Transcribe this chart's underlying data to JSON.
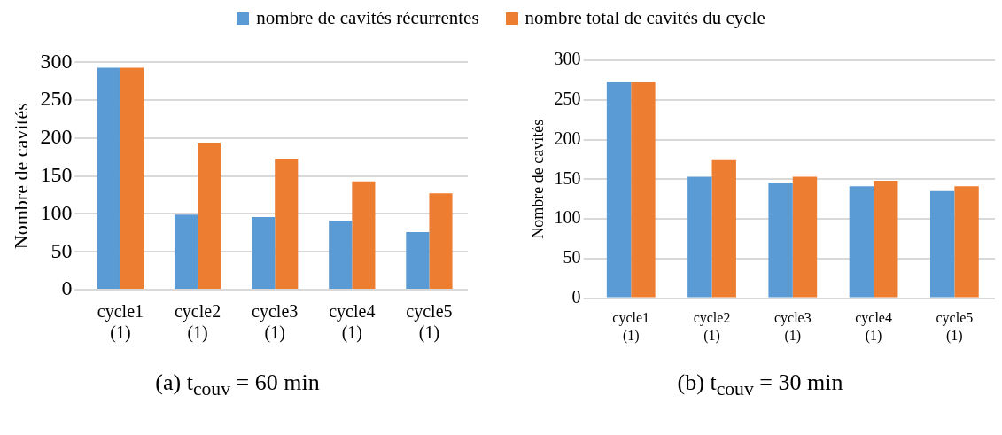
{
  "chart_data": [
    {
      "type": "bar",
      "title": "(a)  t$_{couv}$ = 60 min",
      "ylabel": "Nombre de cavités",
      "categories": [
        "cycle1 (1)",
        "cycle2 (1)",
        "cycle3 (1)",
        "cycle4 (1)",
        "cycle5 (1)"
      ],
      "series": [
        {
          "name": "nombre de cavités récurrentes",
          "color": "#5b9bd5",
          "values": [
            293,
            99,
            96,
            91,
            76
          ]
        },
        {
          "name": "nombre total de cavités du cycle",
          "color": "#ed7d31",
          "values": [
            293,
            194,
            173,
            143,
            127
          ]
        }
      ],
      "ylim": [
        0,
        300
      ],
      "yticks": [
        0,
        50,
        100,
        150,
        200,
        250,
        300
      ],
      "grid": "y",
      "legend": "top"
    },
    {
      "type": "bar",
      "title": "(b)  t$_{couv}$ = 30 min",
      "ylabel": "Nombre de cavités",
      "categories": [
        "cycle1 (1)",
        "cycle2 (1)",
        "cycle3 (1)",
        "cycle4 (1)",
        "cycle5 (1)"
      ],
      "series": [
        {
          "color": "#5b9bd5",
          "values": [
            273,
            153,
            146,
            141,
            135
          ]
        },
        {
          "color": "#ed7d31",
          "values": [
            273,
            174,
            153,
            148,
            141
          ]
        }
      ],
      "ylim": [
        0,
        300
      ],
      "yticks": [
        0,
        50,
        100,
        150,
        200,
        250,
        300
      ],
      "grid": "y"
    }
  ]
}
